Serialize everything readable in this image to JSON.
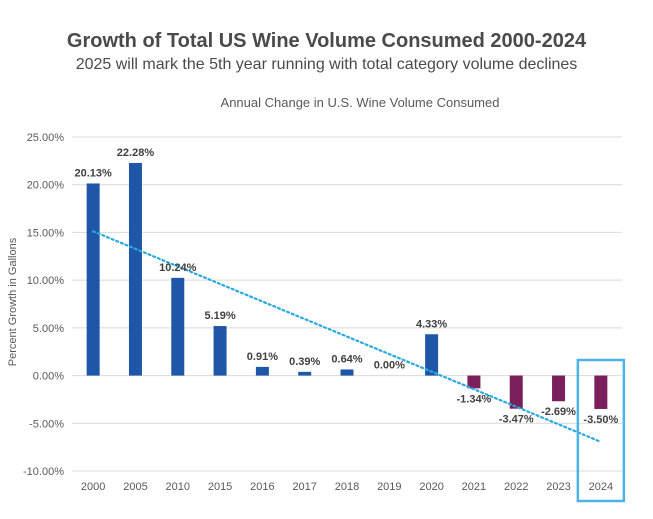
{
  "header": {
    "title": "Growth of Total US Wine Volume Consumed 2000-2024",
    "subtitle": "2025 will mark the 5th year running with total category volume declines"
  },
  "chart_data": {
    "type": "bar",
    "title": "Annual Change in U.S. Wine Volume Consumed",
    "xlabel": "",
    "ylabel": "Percent Growth in Gallons",
    "categories": [
      "2000",
      "2005",
      "2010",
      "2015",
      "2016",
      "2017",
      "2018",
      "2019",
      "2020",
      "2021",
      "2022",
      "2023",
      "2024"
    ],
    "values": [
      20.13,
      22.28,
      10.24,
      5.19,
      0.91,
      0.39,
      0.64,
      0.0,
      4.33,
      -1.34,
      -3.47,
      -2.69,
      -3.5
    ],
    "data_labels": [
      "20.13%",
      "22.28%",
      "10.24%",
      "5.19%",
      "0.91%",
      "0.39%",
      "0.64%",
      "0.00%",
      "4.33%",
      "-1.34%",
      "-3.47%",
      "-2.69%",
      "-3.50%"
    ],
    "ylim": [
      -10,
      25
    ],
    "yticks": [
      25,
      20,
      15,
      10,
      5,
      0,
      -5,
      -10
    ],
    "ytick_labels": [
      "25.00%",
      "20.00%",
      "15.00%",
      "10.00%",
      "5.00%",
      "0.00%",
      "-5.00%",
      "-10.00%"
    ],
    "grid": true,
    "trendline": {
      "type": "linear",
      "style": "dotted",
      "color": "#29a9e0"
    },
    "highlight_category": "2024",
    "colors": {
      "positive": "#1f57a8",
      "negative": "#7a1f5c",
      "highlight_box": "#4db3e6",
      "grid": "#d9d9d9"
    }
  }
}
